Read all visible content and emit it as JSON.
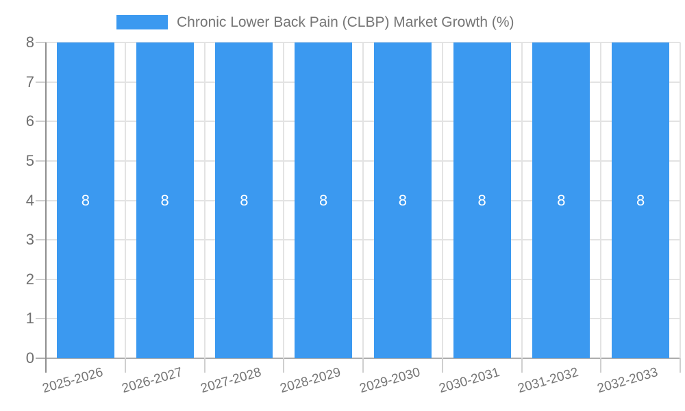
{
  "legend": {
    "label": "Chronic Lower Back Pain (CLBP) Market Growth (%)"
  },
  "chart_data": {
    "type": "bar",
    "title": "Chronic Lower Back Pain (CLBP) Market Growth (%)",
    "categories": [
      "2025-2026",
      "2026-2027",
      "2027-2028",
      "2028-2029",
      "2029-2030",
      "2030-2031",
      "2031-2032",
      "2032-2033"
    ],
    "values": [
      8,
      8,
      8,
      8,
      8,
      8,
      8,
      8
    ],
    "bar_labels": [
      "8",
      "8",
      "8",
      "8",
      "8",
      "8",
      "8",
      "8"
    ],
    "xlabel": "",
    "ylabel": "",
    "ylim": [
      0,
      8
    ],
    "yticks": [
      0,
      1,
      2,
      3,
      4,
      5,
      6,
      7,
      8
    ],
    "grid": true,
    "legend_position": "top-center",
    "colors": {
      "bar": "#3B99F0",
      "bar_label": "#FFFFFF",
      "axis_text": "#757575",
      "y_axis_text": "#6F6F6F",
      "grid_line": "#E3E3E3",
      "axis_line": "#8F8F8F",
      "baseline": "#ADADAD",
      "tick": "#CFCFCF",
      "background": "#FFFFFF"
    }
  }
}
